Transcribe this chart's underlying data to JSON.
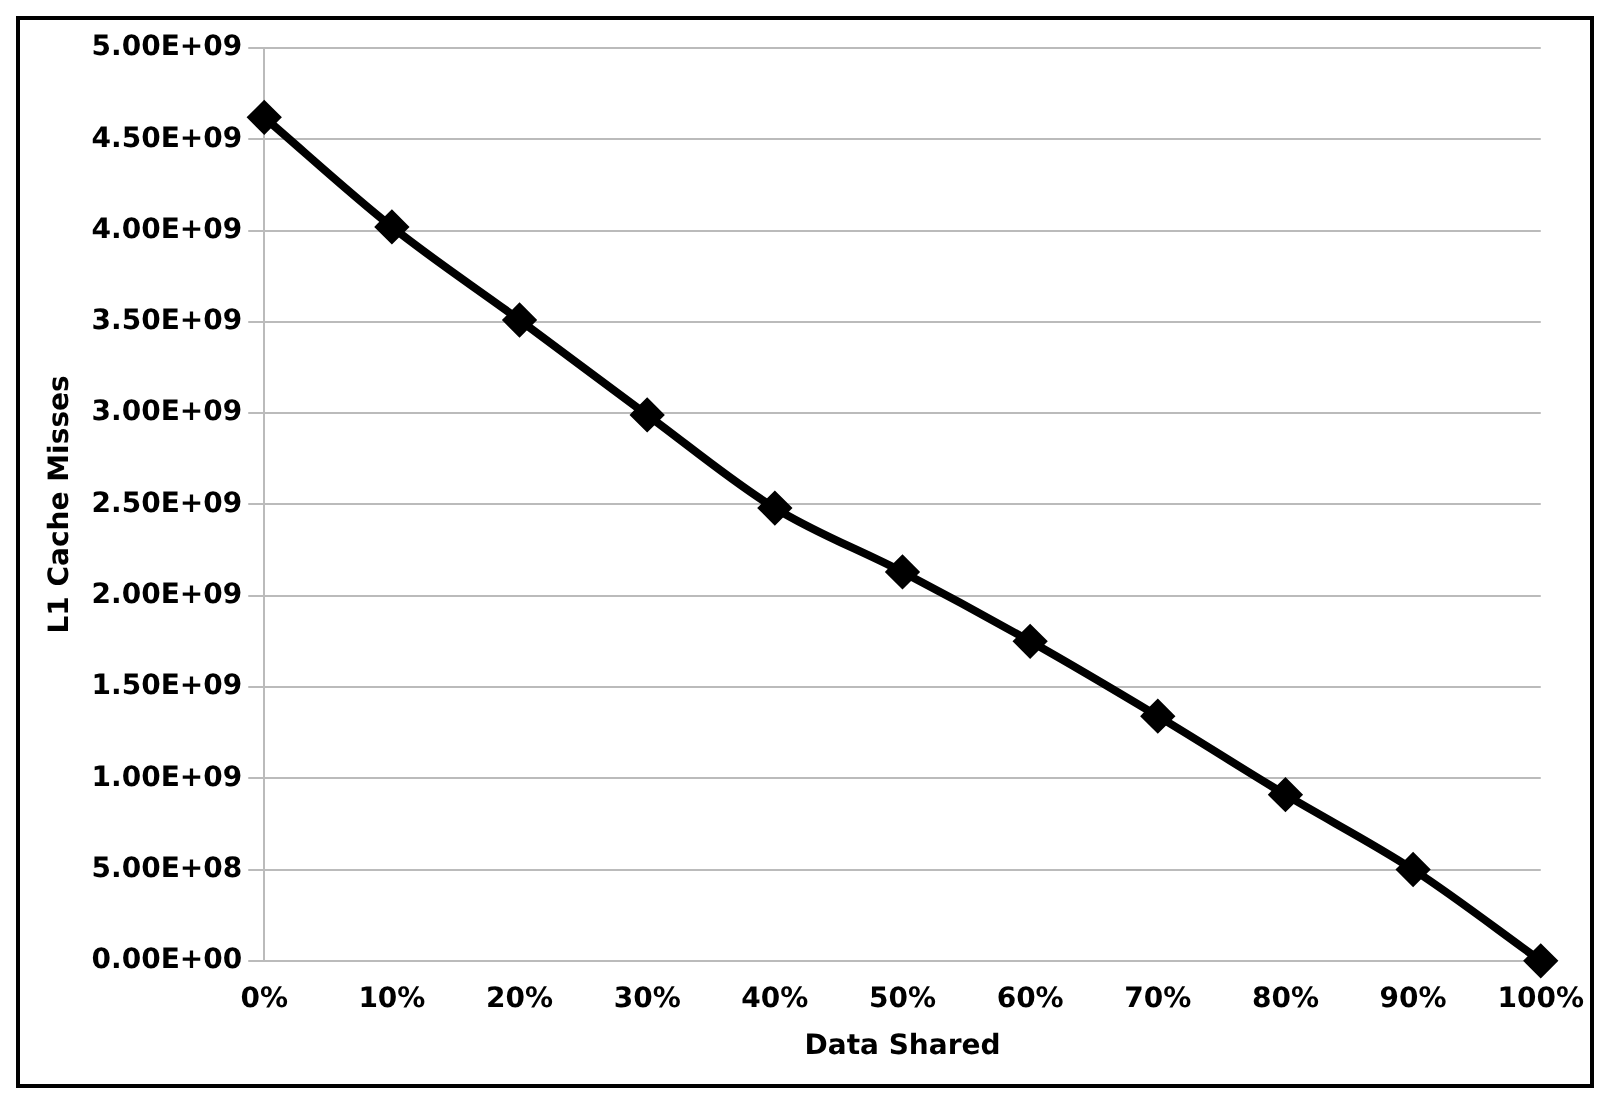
{
  "chart_data": {
    "type": "line",
    "xlabel": "Data Shared",
    "ylabel": "L1 Cache Misses",
    "categories": [
      "0%",
      "10%",
      "20%",
      "30%",
      "40%",
      "50%",
      "60%",
      "70%",
      "80%",
      "90%",
      "100%"
    ],
    "series": [
      {
        "color": "#000000",
        "values": [
          4620000000.0,
          4020000000.0,
          3510000000.0,
          2990000000.0,
          2480000000.0,
          2130000000.0,
          1750000000.0,
          1340000000.0,
          910000000.0,
          500000000.0,
          0
        ]
      }
    ],
    "ylim": [
      0,
      5000000000.0
    ],
    "yticks": [
      {
        "value": 0,
        "label": "0.00E+00"
      },
      {
        "value": 500000000.0,
        "label": "5.00E+08"
      },
      {
        "value": 1000000000.0,
        "label": "1.00E+09"
      },
      {
        "value": 1500000000.0,
        "label": "1.50E+09"
      },
      {
        "value": 2000000000.0,
        "label": "2.00E+09"
      },
      {
        "value": 2500000000.0,
        "label": "2.50E+09"
      },
      {
        "value": 3000000000.0,
        "label": "3.00E+09"
      },
      {
        "value": 3500000000.0,
        "label": "3.50E+09"
      },
      {
        "value": 4000000000.0,
        "label": "4.00E+09"
      },
      {
        "value": 4500000000.0,
        "label": "4.50E+09"
      },
      {
        "value": 5000000000.0,
        "label": "5.00E+09"
      }
    ],
    "grid": "y",
    "legend": false,
    "marker": "diamond",
    "line_style": "solid"
  }
}
